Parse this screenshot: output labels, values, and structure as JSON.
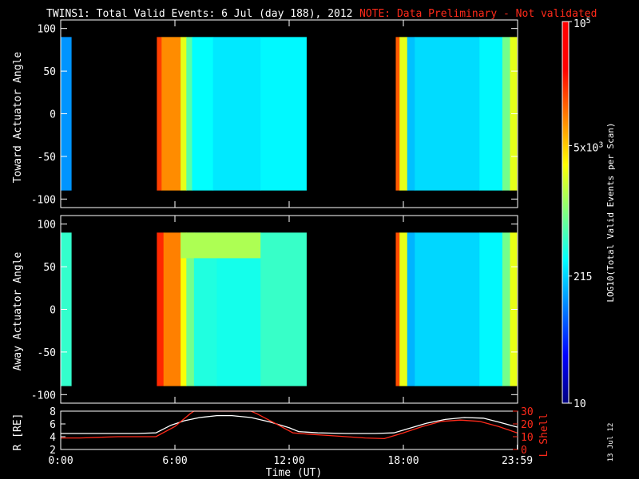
{
  "header": {
    "title": "TWINS1: Total Valid Events:  6 Jul (day 188), 2012",
    "note": "NOTE: Data Preliminary - Not validated"
  },
  "footer": {
    "xlabel": "Time (UT)",
    "stamp": "13 Jul 12"
  },
  "colorbar": {
    "label": "LOG10(Total Valid Events per Scan)",
    "ticks": [
      {
        "value": 100000,
        "label": "10^5"
      },
      {
        "value": 5000,
        "label": "5x10^3"
      },
      {
        "value": 215,
        "label": "215"
      },
      {
        "value": 10,
        "label": "10"
      }
    ],
    "range": [
      10,
      100000
    ],
    "scale": "log",
    "colormap": [
      "#00007f",
      "#0000ff",
      "#0080ff",
      "#00ffff",
      "#80ff80",
      "#ffff00",
      "#ff8000",
      "#ff0000",
      "#ff0000"
    ]
  },
  "chart_data": [
    {
      "type": "heatmap",
      "id": "toward",
      "ylabel": "Toward Actuator Angle",
      "ylim": [
        -110,
        110
      ],
      "yticks": [
        100,
        50,
        0,
        -50,
        -100
      ],
      "xlim": [
        0,
        24
      ],
      "angle_coverage": [
        -90,
        90
      ],
      "data_intervals_hours": [
        [
          0,
          0.55
        ],
        [
          5.05,
          12.9
        ],
        [
          17.6,
          23.95
        ]
      ],
      "bands": [
        {
          "start": 0.0,
          "end": 0.55,
          "value": 120
        },
        {
          "start": 5.05,
          "end": 5.3,
          "value": 18000
        },
        {
          "start": 5.3,
          "end": 6.3,
          "value": 9000
        },
        {
          "start": 6.3,
          "end": 6.6,
          "value": 2500
        },
        {
          "start": 6.6,
          "end": 6.9,
          "value": 700
        },
        {
          "start": 6.9,
          "end": 8.0,
          "value": 320
        },
        {
          "start": 8.0,
          "end": 10.5,
          "value": 260
        },
        {
          "start": 10.5,
          "end": 12.9,
          "value": 300
        },
        {
          "start": 17.6,
          "end": 17.8,
          "value": 14000
        },
        {
          "start": 17.8,
          "end": 18.2,
          "value": 2500
        },
        {
          "start": 18.2,
          "end": 18.6,
          "value": 180
        },
        {
          "start": 18.6,
          "end": 22.0,
          "value": 230
        },
        {
          "start": 22.0,
          "end": 23.2,
          "value": 300
        },
        {
          "start": 23.2,
          "end": 23.6,
          "value": 900
        },
        {
          "start": 23.6,
          "end": 23.95,
          "value": 2500
        }
      ],
      "xticks": []
    },
    {
      "type": "heatmap",
      "id": "away",
      "ylabel": "Away Actuator Angle",
      "ylim": [
        -110,
        110
      ],
      "yticks": [
        100,
        50,
        0,
        -50,
        -100
      ],
      "xlim": [
        0,
        24
      ],
      "angle_coverage": [
        -90,
        90
      ],
      "data_intervals_hours": [
        [
          0,
          0.55
        ],
        [
          5.05,
          12.9
        ],
        [
          17.6,
          23.95
        ]
      ],
      "bands": [
        {
          "start": 0.0,
          "end": 0.55,
          "value": 500
        },
        {
          "start": 5.05,
          "end": 5.4,
          "value": 22000
        },
        {
          "start": 5.4,
          "end": 6.3,
          "value": 10000
        },
        {
          "start": 6.3,
          "end": 6.6,
          "value": 3000
        },
        {
          "start": 6.6,
          "end": 7.0,
          "value": 900
        },
        {
          "start": 7.0,
          "end": 8.2,
          "value": 420
        },
        {
          "start": 8.2,
          "end": 10.5,
          "value": 380
        },
        {
          "start": 10.5,
          "end": 12.9,
          "value": 520
        },
        {
          "start": 17.6,
          "end": 17.8,
          "value": 16000
        },
        {
          "start": 17.8,
          "end": 18.2,
          "value": 2600
        },
        {
          "start": 18.2,
          "end": 18.6,
          "value": 160
        },
        {
          "start": 18.6,
          "end": 22.0,
          "value": 220
        },
        {
          "start": 22.0,
          "end": 23.2,
          "value": 300
        },
        {
          "start": 23.2,
          "end": 23.6,
          "value": 900
        },
        {
          "start": 23.6,
          "end": 23.95,
          "value": 2600
        }
      ],
      "high_angle_feature": {
        "start": 6.3,
        "end": 10.5,
        "angle_range": [
          60,
          90
        ],
        "value": 1500
      },
      "xticks": []
    },
    {
      "type": "line",
      "id": "orbit",
      "ylabel_left": "R [RE]",
      "ylabel_right": "L Shell",
      "x_range": [
        0,
        24
      ],
      "yleft_lim": [
        2,
        8
      ],
      "yleft_ticks": [
        2,
        4,
        6,
        8
      ],
      "yright_lim": [
        0,
        30
      ],
      "yright_ticks": [
        0,
        10,
        20,
        30
      ],
      "x_ticks": [
        {
          "value": 0,
          "label": "0:00"
        },
        {
          "value": 6,
          "label": "6:00"
        },
        {
          "value": 12,
          "label": "12:00"
        },
        {
          "value": 18,
          "label": "18:00"
        },
        {
          "value": 23.98,
          "label": "23:59"
        }
      ],
      "series": [
        {
          "name": "R [RE]",
          "color": "#ffffff",
          "axis": "left",
          "x": [
            0,
            1,
            2,
            3,
            4,
            5.0,
            5.8,
            6.5,
            7.3,
            8.2,
            9.0,
            10.0,
            11.0,
            12.0,
            12.5,
            13.5,
            15,
            16.5,
            17.5,
            18.3,
            19.2,
            20.2,
            21.2,
            22.2,
            23.0,
            23.98
          ],
          "y": [
            4.5,
            4.5,
            4.5,
            4.5,
            4.5,
            4.6,
            5.8,
            6.5,
            7.0,
            7.3,
            7.3,
            7.0,
            6.3,
            5.4,
            4.8,
            4.6,
            4.5,
            4.5,
            4.6,
            5.3,
            6.1,
            6.7,
            7.0,
            6.9,
            6.3,
            5.5
          ]
        },
        {
          "name": "L Shell",
          "color": "#ff2a1a",
          "axis": "right",
          "x": [
            0,
            1,
            2,
            3,
            4,
            5.0,
            6.0,
            6.8,
            7.0,
            10.0,
            10.3,
            11.2,
            12.2,
            13.0,
            14,
            15,
            16,
            17,
            18,
            19,
            20,
            21,
            22,
            23,
            23.98
          ],
          "y": [
            9,
            9,
            9.5,
            10,
            10,
            10,
            18,
            28,
            30,
            30,
            28,
            21,
            13,
            12,
            11,
            10,
            9,
            8.5,
            13,
            18,
            22,
            23,
            22,
            18,
            13
          ]
        }
      ]
    }
  ]
}
